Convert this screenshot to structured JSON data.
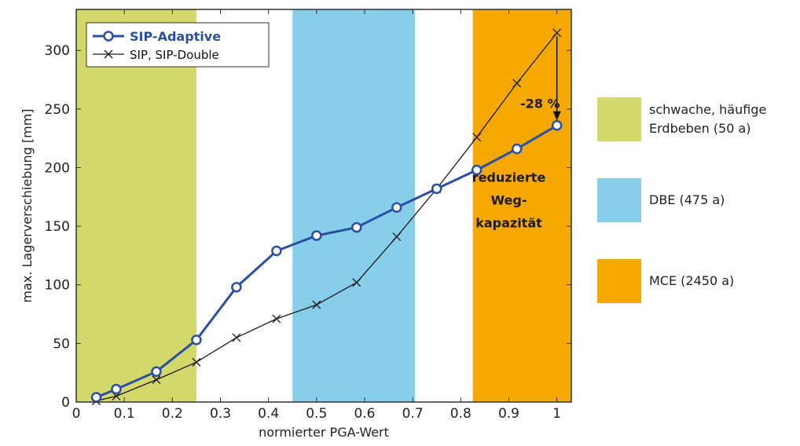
{
  "chart_data": {
    "type": "line",
    "xlabel": "normierter PGA-Wert",
    "ylabel": "max. Lagerverschiebung [mm]",
    "xlim": [
      0,
      1.03
    ],
    "ylim": [
      0,
      335
    ],
    "xticks": [
      "0",
      "0.1",
      "0.2",
      "0.3",
      "0.4",
      "0.5",
      "0.6",
      "0.7",
      "0.8",
      "0.9",
      "1"
    ],
    "yticks": [
      "0",
      "50",
      "100",
      "150",
      "200",
      "250",
      "300"
    ],
    "grid": false,
    "legend_position": "top-left",
    "bands": [
      {
        "label": "schwache, häufige Erdbeben (50 a)",
        "label_lines": [
          "schwache, häufige",
          "Erdbeben (50 a)"
        ],
        "x_from": 0,
        "x_to": 0.25,
        "color": "#d3d86a"
      },
      {
        "label": "DBE (475 a)",
        "label_lines": [
          "DBE (475 a)"
        ],
        "x_from": 0.45,
        "x_to": 0.705,
        "color": "#87ceeb"
      },
      {
        "label": "MCE (2450 a)",
        "label_lines": [
          "MCE (2450 a)"
        ],
        "x_from": 0.825,
        "x_to": 1.03,
        "color": "#f5a800"
      }
    ],
    "series": [
      {
        "name": "SIP-Adaptive",
        "color": "#2a4fa3",
        "marker": "circle",
        "x": [
          0.0417,
          0.0833,
          0.1667,
          0.25,
          0.3333,
          0.4167,
          0.5,
          0.5833,
          0.6667,
          0.75,
          0.8333,
          0.9167,
          1.0
        ],
        "y": [
          4,
          11,
          26,
          53,
          98,
          129,
          142,
          149,
          166,
          182,
          198,
          216,
          236
        ]
      },
      {
        "name": "SIP, SIP-Double",
        "color": "#1a1a1a",
        "marker": "x",
        "x": [
          0.0417,
          0.0833,
          0.1667,
          0.25,
          0.3333,
          0.4167,
          0.5,
          0.5833,
          0.6667,
          0.75,
          0.8333,
          0.9167,
          1.0
        ],
        "y": [
          1,
          5,
          19,
          34,
          55,
          71,
          83,
          102,
          141,
          182,
          226,
          272,
          315
        ]
      }
    ],
    "annotations": [
      {
        "text": "-28 %",
        "x": 0.965,
        "y": 251
      },
      {
        "text_lines": [
          "reduzierte",
          "Weg-",
          "kapazität"
        ],
        "x": 0.9,
        "y": 188
      }
    ],
    "arrow": {
      "x": 1.0,
      "y_from": 312,
      "y_to": 240
    }
  }
}
